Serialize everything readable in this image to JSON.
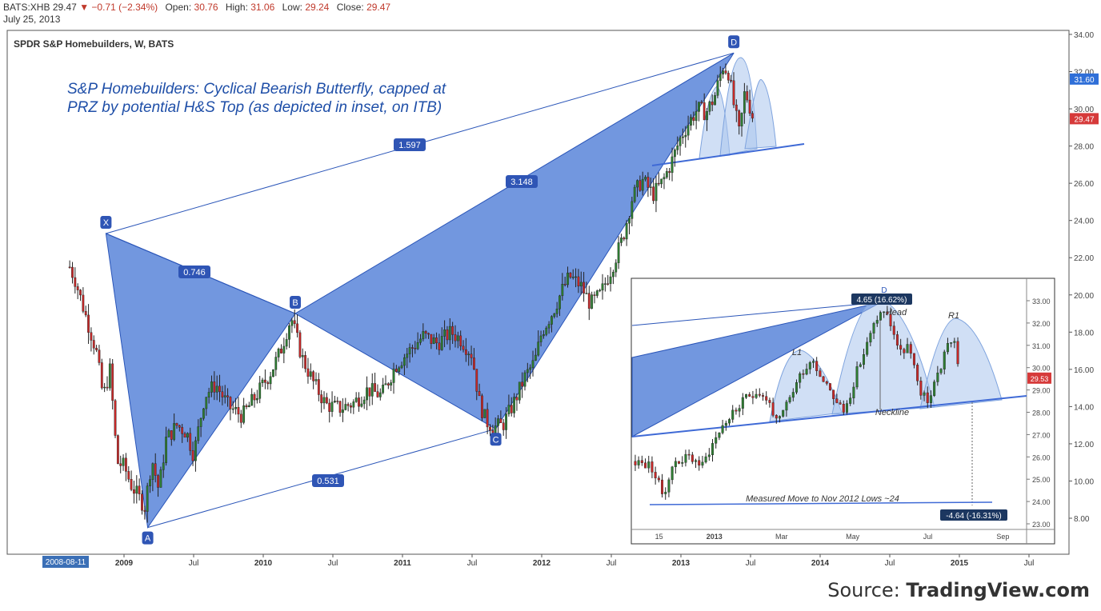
{
  "header": {
    "symbol": "BATS:XHB",
    "last": "29.47",
    "change": "▼ −0.71 (−2.34%)",
    "open_label": "Open:",
    "open": "30.76",
    "high_label": "High:",
    "high": "31.06",
    "low_label": "Low:",
    "low": "29.24",
    "close_label": "Close:",
    "close": "29.47",
    "date": "July 25, 2013"
  },
  "chart_data": [
    {
      "type": "candlestick",
      "title": "SPDR S&P Homebuilders, W, BATS",
      "annotation": [
        "S&P Homebuilders: Cyclical Bearish Butterfly, capped at",
        "PRZ by potential H&S Top (as depicted in inset, on ITB)"
      ],
      "ylim": [
        7,
        34
      ],
      "y_ticks": [
        8,
        10,
        12,
        14,
        16,
        18,
        20,
        22,
        24,
        26,
        28,
        30,
        32,
        34
      ],
      "x_ticks": [
        "2008-08-11",
        "2009",
        "Jul",
        "2010",
        "Jul",
        "2011",
        "Jul",
        "2012",
        "Jul",
        "2013",
        "Jul",
        "2014",
        "Jul",
        "2015",
        "Jul"
      ],
      "x_tick_dates": [
        2008.61,
        2009.0,
        2009.5,
        2010.0,
        2010.5,
        2011.0,
        2011.5,
        2012.0,
        2012.5,
        2013.0,
        2013.5,
        2014.0,
        2014.5,
        2015.0,
        2015.5
      ],
      "price_badges": [
        {
          "value": 31.6,
          "label": "31.60",
          "color": "#2f6fd8"
        },
        {
          "value": 29.47,
          "label": "29.47",
          "color": "#d63a3a"
        }
      ],
      "price_path": [
        [
          2008.61,
          21.5
        ],
        [
          2008.65,
          20.8
        ],
        [
          2008.72,
          19.0
        ],
        [
          2008.8,
          17.0
        ],
        [
          2008.85,
          14.5
        ],
        [
          2008.9,
          16.0
        ],
        [
          2008.95,
          11.0
        ],
        [
          2009.0,
          10.8
        ],
        [
          2009.05,
          9.8
        ],
        [
          2009.1,
          9.2
        ],
        [
          2009.15,
          8.6
        ],
        [
          2009.2,
          11.2
        ],
        [
          2009.25,
          9.5
        ],
        [
          2009.3,
          12.2
        ],
        [
          2009.38,
          13.0
        ],
        [
          2009.45,
          12.6
        ],
        [
          2009.5,
          11.4
        ],
        [
          2009.58,
          14.6
        ],
        [
          2009.66,
          15.2
        ],
        [
          2009.75,
          14.0
        ],
        [
          2009.85,
          13.5
        ],
        [
          2009.95,
          14.6
        ],
        [
          2010.05,
          15.8
        ],
        [
          2010.12,
          16.9
        ],
        [
          2010.2,
          18.8
        ],
        [
          2010.28,
          16.6
        ],
        [
          2010.36,
          15.3
        ],
        [
          2010.45,
          14.1
        ],
        [
          2010.55,
          13.9
        ],
        [
          2010.65,
          14.2
        ],
        [
          2010.75,
          14.9
        ],
        [
          2010.85,
          14.6
        ],
        [
          2010.95,
          16.2
        ],
        [
          2011.05,
          17.0
        ],
        [
          2011.15,
          17.8
        ],
        [
          2011.25,
          17.4
        ],
        [
          2011.35,
          18.0
        ],
        [
          2011.42,
          17.6
        ],
        [
          2011.5,
          16.8
        ],
        [
          2011.55,
          14.3
        ],
        [
          2011.6,
          13.2
        ],
        [
          2011.66,
          12.9
        ],
        [
          2011.72,
          13.0
        ],
        [
          2011.8,
          14.2
        ],
        [
          2011.88,
          15.6
        ],
        [
          2011.95,
          16.4
        ],
        [
          2012.0,
          18.0
        ],
        [
          2012.08,
          19.1
        ],
        [
          2012.15,
          20.3
        ],
        [
          2012.2,
          21.0
        ],
        [
          2012.28,
          20.5
        ],
        [
          2012.35,
          19.5
        ],
        [
          2012.42,
          20.0
        ],
        [
          2012.5,
          21.4
        ],
        [
          2012.58,
          23.0
        ],
        [
          2012.65,
          25.2
        ],
        [
          2012.72,
          26.2
        ],
        [
          2012.8,
          25.4
        ],
        [
          2012.87,
          26.1
        ],
        [
          2012.93,
          27.1
        ],
        [
          2013.0,
          28.5
        ],
        [
          2013.06,
          29.3
        ],
        [
          2013.12,
          30.0
        ],
        [
          2013.18,
          29.8
        ],
        [
          2013.24,
          30.6
        ],
        [
          2013.3,
          32.3
        ],
        [
          2013.34,
          32.0
        ],
        [
          2013.38,
          30.2
        ],
        [
          2013.42,
          28.6
        ],
        [
          2013.46,
          31.0
        ],
        [
          2013.52,
          29.47
        ]
      ],
      "harmonic_points": [
        {
          "label": "X",
          "date": 2008.87,
          "price": 23.3
        },
        {
          "label": "A",
          "date": 2009.17,
          "price": 7.5
        },
        {
          "label": "B",
          "date": 2010.23,
          "price": 19.0
        },
        {
          "label": "C",
          "date": 2011.67,
          "price": 12.8
        },
        {
          "label": "D",
          "date": 2013.38,
          "price": 33.0
        }
      ],
      "ratios": [
        {
          "label": "0.746",
          "between": [
            "X",
            "B"
          ]
        },
        {
          "label": "0.531",
          "between": [
            "A",
            "C"
          ]
        },
        {
          "label": "3.148",
          "between": [
            "B",
            "D"
          ]
        },
        {
          "label": "1.597",
          "between": [
            "X",
            "D"
          ]
        }
      ]
    },
    {
      "type": "candlestick",
      "title": "",
      "inset": true,
      "ylim": [
        22.6,
        33.6
      ],
      "y_ticks": [
        23,
        24,
        25,
        26,
        27,
        28,
        29,
        30,
        31,
        32,
        33
      ],
      "x_ticks": [
        "15",
        "2013",
        "Mar",
        "May",
        "Jul",
        "Sep"
      ],
      "price_badge": {
        "value": 29.53,
        "label": "29.53",
        "color": "#d63a3a"
      },
      "labels": {
        "d_point": "D",
        "d_move": "4.65 (16.62%)",
        "head": "Head",
        "left_shoulder": "L1",
        "right_shoulder": "R1",
        "neckline": "Neckline",
        "measured_move": "Measured Move to Nov 2012 Lows ~24",
        "target_move": "-4.64 (-16.31%)"
      }
    }
  ],
  "source": {
    "prefix": "Source:",
    "name": "TradingView.com"
  }
}
